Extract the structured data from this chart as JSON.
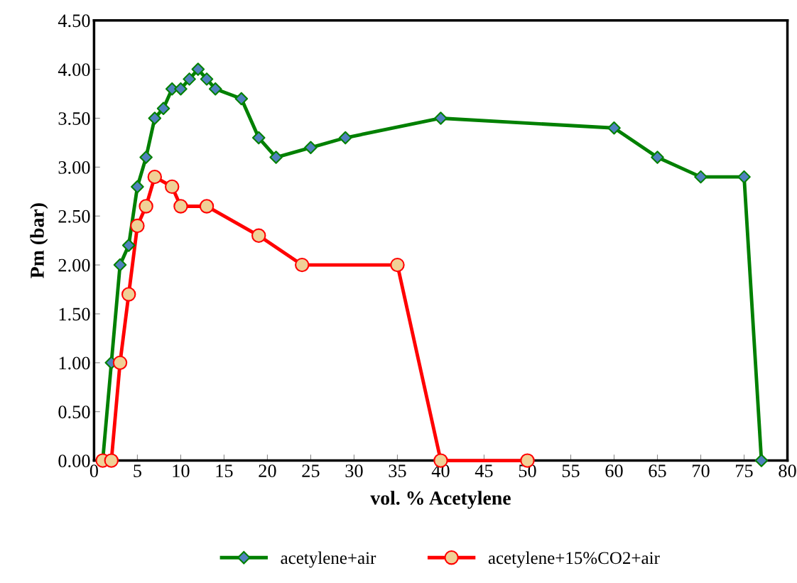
{
  "chart_data": {
    "type": "line",
    "xlabel": "vol. % Acetylene",
    "ylabel": "Pm (bar)",
    "xlim": [
      0,
      80
    ],
    "xticks": [
      0,
      5,
      10,
      15,
      20,
      25,
      30,
      35,
      40,
      45,
      50,
      55,
      60,
      65,
      70,
      75,
      80
    ],
    "ylim": [
      0,
      4.5
    ],
    "yticks": [
      {
        "value": 0,
        "label": "0.00"
      },
      {
        "value": 0.5,
        "label": "0.50"
      },
      {
        "value": 1,
        "label": "1.00"
      },
      {
        "value": 1.5,
        "label": "1.50"
      },
      {
        "value": 2,
        "label": "2.00"
      },
      {
        "value": 2.5,
        "label": "2.50"
      },
      {
        "value": 3,
        "label": "3.00"
      },
      {
        "value": 3.5,
        "label": "3.50"
      },
      {
        "value": 4,
        "label": "4.00"
      },
      {
        "value": 4.5,
        "label": "4.50"
      }
    ],
    "grid": false,
    "legend": "bottom",
    "line_style": "solid",
    "series": [
      {
        "name": "acetylene+air",
        "color": "#008000",
        "marker": "diamond",
        "x": [
          1,
          2,
          3,
          4,
          5,
          6,
          7,
          8,
          9,
          10,
          11,
          12,
          13,
          14,
          17,
          19,
          21,
          25,
          29,
          40,
          60,
          65,
          70,
          75,
          77
        ],
        "values": [
          0,
          1.0,
          2.0,
          2.2,
          2.8,
          3.1,
          3.5,
          3.6,
          3.8,
          3.8,
          3.9,
          4.0,
          3.9,
          3.8,
          3.7,
          3.3,
          3.1,
          3.2,
          3.3,
          3.5,
          3.4,
          3.1,
          2.9,
          2.9,
          0
        ]
      },
      {
        "name": "acetylene+15%CO2+air",
        "color": "#ff0000",
        "marker": "circle",
        "x": [
          1,
          2,
          3,
          4,
          5,
          6,
          7,
          9,
          10,
          13,
          19,
          24,
          35,
          40,
          50
        ],
        "values": [
          0,
          0,
          1.0,
          1.7,
          2.4,
          2.6,
          2.9,
          2.8,
          2.6,
          2.6,
          2.3,
          2.0,
          2.0,
          0,
          0
        ]
      }
    ]
  }
}
